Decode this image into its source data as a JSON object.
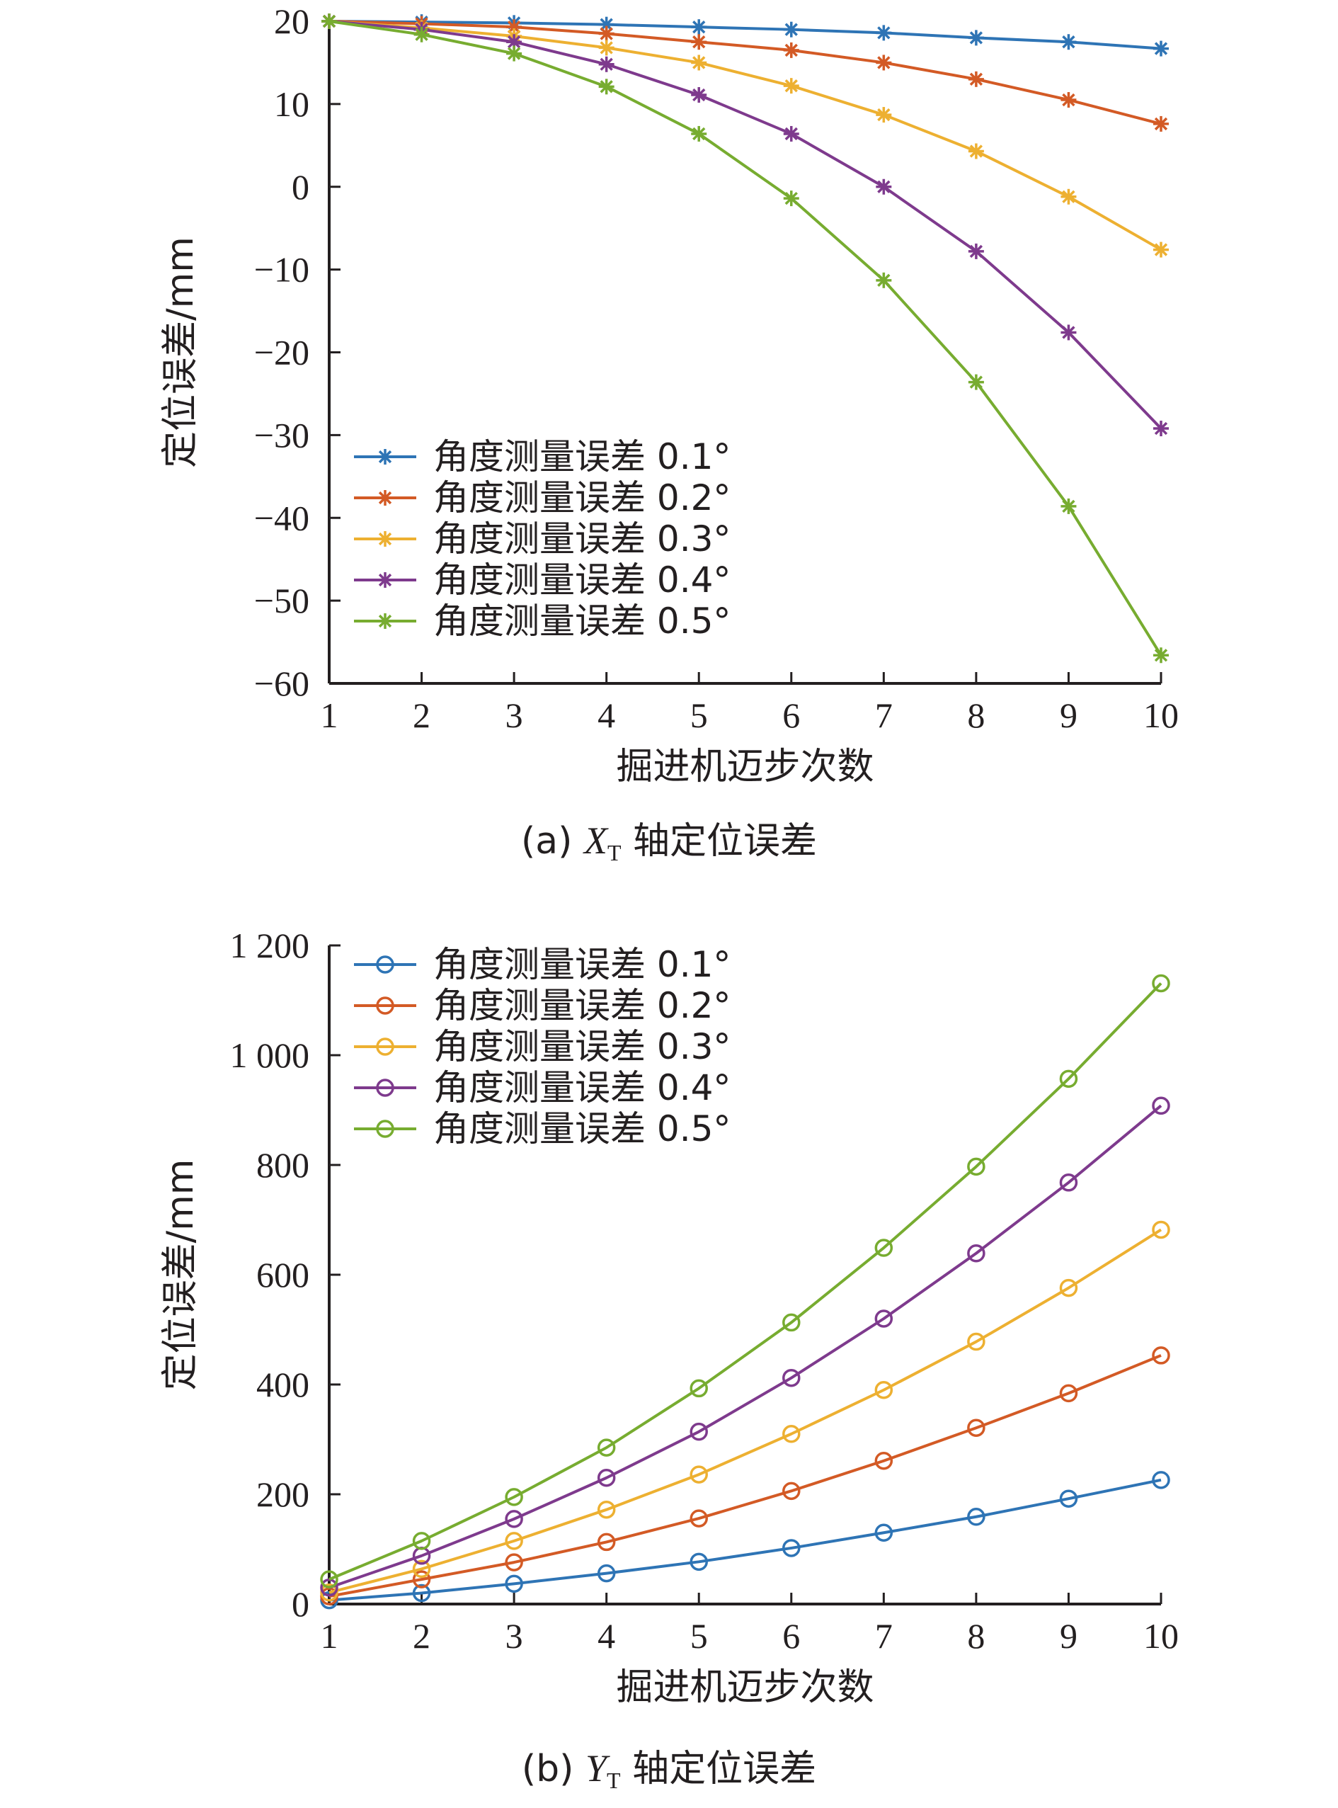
{
  "chart_data": [
    {
      "type": "line",
      "marker": "asterisk",
      "caption": {
        "prefix": "(a)",
        "var": "X",
        "sub": "T",
        "suffix": "轴定位误差"
      },
      "xlabel": "掘进机迈步次数",
      "ylabel": "定位误差/mm",
      "x": [
        1,
        2,
        3,
        4,
        5,
        6,
        7,
        8,
        9,
        10
      ],
      "xlim": [
        1,
        10
      ],
      "ylim": [
        -60,
        20
      ],
      "xticks": [
        "1",
        "2",
        "3",
        "4",
        "5",
        "6",
        "7",
        "8",
        "9",
        "10"
      ],
      "yticks": [
        {
          "value": 20,
          "label": "20"
        },
        {
          "value": 10,
          "label": "10"
        },
        {
          "value": 0,
          "label": "0"
        },
        {
          "value": -10,
          "label": "−10"
        },
        {
          "value": -20,
          "label": "−20"
        },
        {
          "value": -30,
          "label": "−30"
        },
        {
          "value": -40,
          "label": "−40"
        },
        {
          "value": -50,
          "label": "−50"
        },
        {
          "value": -60,
          "label": "−60"
        }
      ],
      "legend_position": "lower-left",
      "series": [
        {
          "name": "角度测量误差 0.1°",
          "color": "#2e74b5",
          "values": [
            20,
            19.9,
            19.8,
            19.6,
            19.3,
            19.0,
            18.6,
            18.0,
            17.5,
            16.7
          ]
        },
        {
          "name": "角度测量误差 0.2°",
          "color": "#d35a25",
          "values": [
            20,
            19.7,
            19.3,
            18.5,
            17.5,
            16.5,
            15.0,
            13.0,
            10.5,
            7.6
          ]
        },
        {
          "name": "角度测量误差 0.3°",
          "color": "#edb031",
          "values": [
            20,
            19.2,
            18.2,
            16.8,
            15.0,
            12.2,
            8.7,
            4.3,
            -1.2,
            -7.6
          ]
        },
        {
          "name": "角度测量误差 0.4°",
          "color": "#7e3a8d",
          "values": [
            20,
            19.0,
            17.5,
            14.8,
            11.1,
            6.4,
            0.0,
            -7.8,
            -17.6,
            -29.2
          ]
        },
        {
          "name": "角度测量误差 0.5°",
          "color": "#77ac30",
          "values": [
            20,
            18.4,
            16.1,
            12.1,
            6.4,
            -1.4,
            -11.3,
            -23.6,
            -38.6,
            -56.6
          ]
        }
      ]
    },
    {
      "type": "line",
      "marker": "circle",
      "caption": {
        "prefix": "(b)",
        "var": "Y",
        "sub": "T",
        "suffix": "轴定位误差"
      },
      "xlabel": "掘进机迈步次数",
      "ylabel": "定位误差/mm",
      "x": [
        1,
        2,
        3,
        4,
        5,
        6,
        7,
        8,
        9,
        10
      ],
      "xlim": [
        1,
        10
      ],
      "ylim": [
        0,
        1200
      ],
      "xticks": [
        "1",
        "2",
        "3",
        "4",
        "5",
        "6",
        "7",
        "8",
        "9",
        "10"
      ],
      "yticks": [
        {
          "value": 0,
          "label": "0"
        },
        {
          "value": 200,
          "label": "200"
        },
        {
          "value": 400,
          "label": "400"
        },
        {
          "value": 600,
          "label": "600"
        },
        {
          "value": 800,
          "label": "800"
        },
        {
          "value": 1000,
          "label": "1 000"
        },
        {
          "value": 1200,
          "label": "1 200"
        }
      ],
      "legend_position": "upper-left",
      "series": [
        {
          "name": "角度测量误差 0.1°",
          "color": "#2e74b5",
          "values": [
            7,
            20,
            37,
            56,
            77,
            102,
            130,
            159,
            192,
            226
          ]
        },
        {
          "name": "角度测量误差 0.2°",
          "color": "#d35a25",
          "values": [
            14,
            45,
            76,
            113,
            156,
            206,
            261,
            321,
            384,
            453
          ]
        },
        {
          "name": "角度测量误差 0.3°",
          "color": "#edb031",
          "values": [
            21,
            64,
            115,
            172,
            236,
            310,
            390,
            478,
            576,
            682
          ]
        },
        {
          "name": "角度测量误差 0.4°",
          "color": "#7e3a8d",
          "values": [
            30,
            88,
            155,
            230,
            314,
            412,
            520,
            639,
            768,
            908
          ]
        },
        {
          "name": "角度测量误差 0.5°",
          "color": "#77ac30",
          "values": [
            45,
            115,
            195,
            285,
            393,
            513,
            649,
            797,
            957,
            1131
          ]
        }
      ]
    }
  ]
}
